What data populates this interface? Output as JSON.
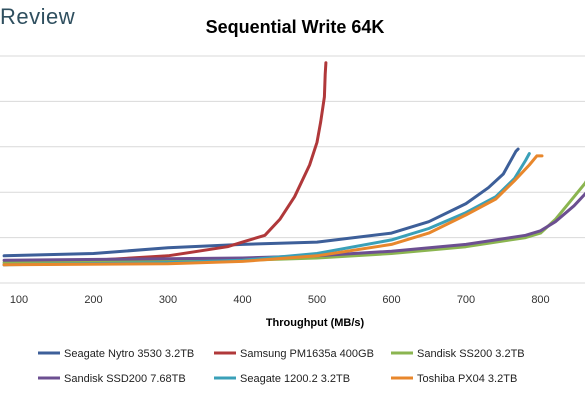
{
  "brand": {
    "logo_text": "Review"
  },
  "chart_data": {
    "type": "line",
    "title": "Sequential Write 64K",
    "xlabel": "Throughput (MB/s)",
    "ylabel": "",
    "xlim": [
      80,
      865
    ],
    "ylim": [
      0,
      100
    ],
    "x_ticks": [
      100,
      200,
      300,
      400,
      500,
      600,
      700,
      800
    ],
    "grid": true,
    "legend_position": "bottom",
    "series": [
      {
        "name": "Seagate Nytro 3530 3.2TB",
        "color": "#3d5f99",
        "points": [
          [
            80,
            12
          ],
          [
            200,
            13
          ],
          [
            300,
            15.5
          ],
          [
            400,
            17
          ],
          [
            500,
            18
          ],
          [
            600,
            22
          ],
          [
            650,
            27
          ],
          [
            700,
            35
          ],
          [
            730,
            42
          ],
          [
            750,
            48
          ],
          [
            767,
            58
          ],
          [
            770,
            59
          ]
        ]
      },
      {
        "name": "Samsung PM1635a 400GB",
        "color": "#b0383a",
        "points": [
          [
            80,
            8
          ],
          [
            200,
            10
          ],
          [
            300,
            12
          ],
          [
            380,
            16
          ],
          [
            400,
            18
          ],
          [
            430,
            21
          ],
          [
            450,
            28
          ],
          [
            470,
            38
          ],
          [
            490,
            52
          ],
          [
            500,
            62
          ],
          [
            505,
            71
          ],
          [
            510,
            82
          ],
          [
            511,
            92
          ],
          [
            512,
            97
          ]
        ]
      },
      {
        "name": "Sandisk SS200 3.2TB",
        "color": "#8bb550",
        "points": [
          [
            80,
            9
          ],
          [
            400,
            10
          ],
          [
            500,
            11
          ],
          [
            600,
            13
          ],
          [
            700,
            16
          ],
          [
            780,
            20
          ],
          [
            800,
            22
          ],
          [
            820,
            28
          ],
          [
            840,
            36
          ],
          [
            860,
            44
          ],
          [
            865,
            47
          ]
        ]
      },
      {
        "name": "Sandisk SSD200 7.68TB",
        "color": "#6c4f91",
        "points": [
          [
            80,
            10
          ],
          [
            400,
            11
          ],
          [
            500,
            12
          ],
          [
            600,
            14
          ],
          [
            700,
            17
          ],
          [
            780,
            21
          ],
          [
            800,
            23
          ],
          [
            820,
            27
          ],
          [
            845,
            34
          ],
          [
            865,
            41
          ]
        ]
      },
      {
        "name": "Seagate 1200.2 3.2TB",
        "color": "#3aa0b8",
        "points": [
          [
            80,
            8
          ],
          [
            300,
            9
          ],
          [
            400,
            10
          ],
          [
            500,
            13
          ],
          [
            600,
            19
          ],
          [
            650,
            24
          ],
          [
            700,
            31
          ],
          [
            740,
            38
          ],
          [
            765,
            46
          ],
          [
            780,
            54
          ],
          [
            785,
            57
          ]
        ]
      },
      {
        "name": "Toshiba PX04 3.2TB",
        "color": "#e8872c",
        "points": [
          [
            80,
            8
          ],
          [
            300,
            8.5
          ],
          [
            400,
            9.5
          ],
          [
            500,
            12
          ],
          [
            600,
            17
          ],
          [
            650,
            22
          ],
          [
            700,
            30
          ],
          [
            740,
            37
          ],
          [
            765,
            45
          ],
          [
            785,
            52
          ],
          [
            795,
            56
          ],
          [
            802,
            56
          ]
        ]
      }
    ]
  }
}
